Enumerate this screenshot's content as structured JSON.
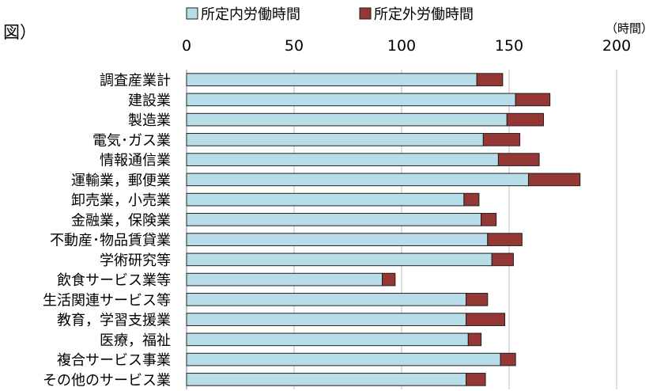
{
  "prefix_label": "図）",
  "chart_data": {
    "type": "bar",
    "orientation": "horizontal",
    "stacked": true,
    "unit_label": "（時間）",
    "xlim": [
      0,
      200
    ],
    "xticks": [
      0,
      50,
      100,
      150,
      200
    ],
    "tick_labels": [
      "0",
      "50",
      "100",
      "150",
      "200"
    ],
    "grid": true,
    "legend_position": "top",
    "categories": [
      "調査産業計",
      "建設業",
      "製造業",
      "電気･ガス業",
      "情報通信業",
      "運輸業，郵便業",
      "卸売業，小売業",
      "金融業，保険業",
      "不動産･物品賃貸業",
      "学術研究等",
      "飲食サービス業等",
      "生活関連サービス等",
      "教育，学習支援業",
      "医療，福祉",
      "複合サービス事業",
      "その他のサービス業"
    ],
    "series": [
      {
        "name": "所定内労働時間",
        "color": "#b7dde8",
        "values": [
          135,
          153,
          149,
          138,
          145,
          159,
          129,
          137,
          140,
          142,
          91,
          130,
          130,
          131,
          146,
          130
        ]
      },
      {
        "name": "所定外労働時間",
        "color": "#953735",
        "values": [
          12,
          16,
          17,
          17,
          19,
          24,
          7,
          7,
          16,
          10,
          6,
          10,
          18,
          6,
          7,
          9
        ]
      }
    ]
  }
}
